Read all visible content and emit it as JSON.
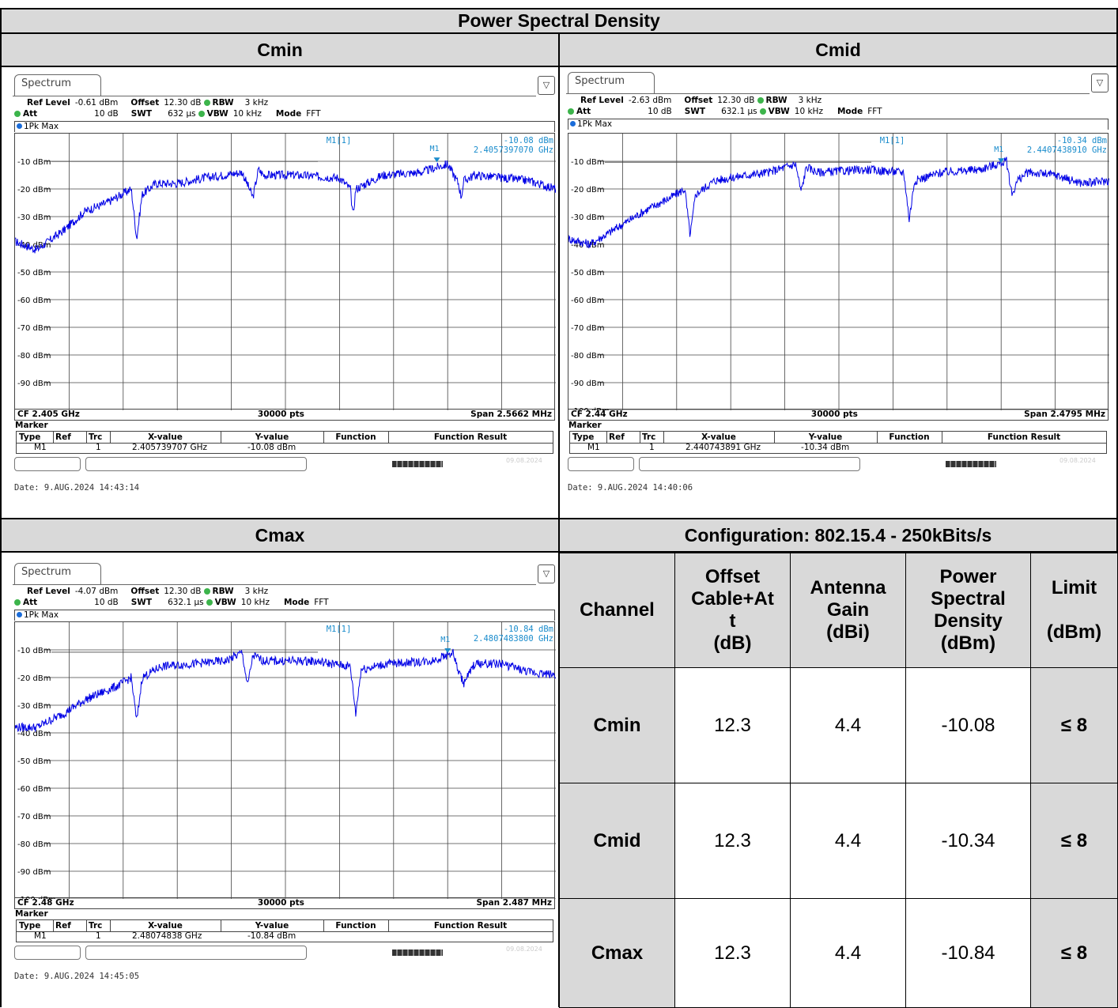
{
  "page_title": "Power Spectral Density",
  "panels": [
    {
      "label": "Cmin",
      "tab": "Spectrum",
      "ref_level": "-0.61 dBm",
      "offset": "12.30 dB",
      "rbw": "3 kHz",
      "att": "10 dB",
      "swt": "632 µs",
      "vbw": "10 kHz",
      "mode": "FFT",
      "trace": "1Pk Max",
      "marker_label": "M1[1]",
      "marker_tag": "M1",
      "marker_y": "-10.08 dBm",
      "marker_freq": "2.4057397070 GHz",
      "cf": "CF 2.405 GHz",
      "pts": "30000 pts",
      "span": "Span 2.5662 MHz",
      "table_xvalue": "2.405739707 GHz",
      "table_yvalue": "-10.08 dBm",
      "table_trc": "1",
      "date": "Date: 9.AUG.2024  14:43:14",
      "status_date": "09.08.2024",
      "ylabels": [
        "-10 dBm",
        "-20 dBm",
        "-30 dBm",
        "-40 dBm",
        "-50 dBm",
        "-60 dBm",
        "-70 dBm",
        "-80 dBm",
        "-90 dBm"
      ]
    },
    {
      "label": "Cmid",
      "tab": "Spectrum",
      "ref_level": "-2.63 dBm",
      "offset": "12.30 dB",
      "rbw": "3 kHz",
      "att": "10 dB",
      "swt": "632.1 µs",
      "vbw": "10 kHz",
      "mode": "FFT",
      "trace": "1Pk Max",
      "marker_label": "M1[1]",
      "marker_tag": "M1",
      "marker_y": "-10.34 dBm",
      "marker_freq": "2.4407438910 GHz",
      "cf": "CF 2.44 GHz",
      "pts": "30000 pts",
      "span": "Span 2.4795 MHz",
      "table_xvalue": "2.440743891 GHz",
      "table_yvalue": "-10.34 dBm",
      "table_trc": "1",
      "date": "Date: 9.AUG.2024  14:40:06",
      "status_date": "09.08.2024",
      "ylabels": [
        "-10 dBm",
        "-20 dBm",
        "-30 dBm",
        "-40 dBm",
        "-50 dBm",
        "-60 dBm",
        "-70 dBm",
        "-80 dBm",
        "-90 dBm",
        "-100 dBm"
      ]
    },
    {
      "label": "Cmax",
      "tab": "Spectrum",
      "ref_level": "-4.07 dBm",
      "offset": "12.30 dB",
      "rbw": "3 kHz",
      "att": "10 dB",
      "swt": "632.1 µs",
      "vbw": "10 kHz",
      "mode": "FFT",
      "trace": "1Pk Max",
      "marker_label": "M1[1]",
      "marker_tag": "M1",
      "marker_y": "-10.84 dBm",
      "marker_freq": "2.4807483800 GHz",
      "cf": "CF 2.48 GHz",
      "pts": "30000 pts",
      "span": "Span 2.487 MHz",
      "table_xvalue": "2.48074838 GHz",
      "table_yvalue": "-10.84 dBm",
      "table_trc": "1",
      "date": "Date: 9.AUG.2024  14:45:05",
      "status_date": "09.08.2024",
      "ylabels": [
        "-10 dBm",
        "-20 dBm",
        "-30 dBm",
        "-40 dBm",
        "-50 dBm",
        "-60 dBm",
        "-70 dBm",
        "-80 dBm",
        "-90 dBm",
        "-100 dBm"
      ]
    }
  ],
  "marker_table": {
    "title": "Marker",
    "headers": [
      "Type",
      "Ref",
      "Trc",
      "X-value",
      "Y-value",
      "Function",
      "Function Result"
    ],
    "type": "M1"
  },
  "setting_labels": {
    "ref_level": "Ref Level",
    "offset": "Offset",
    "rbw": "RBW",
    "att": "Att",
    "swt": "SWT",
    "vbw": "VBW",
    "mode": "Mode"
  },
  "config": {
    "title": "Configuration: 802.15.4 - 250kBits/s",
    "headers": [
      "Channel",
      "Offset\nCable+At\nt\n(dB)",
      "Antenna\nGain\n(dBi)",
      "Power\nSpectral\nDensity\n(dBm)",
      "Limit\n\n(dBm)"
    ],
    "rows": [
      {
        "channel": "Cmin",
        "offset": "12.3",
        "gain": "4.4",
        "psd": "-10.08",
        "limit": "≤ 8"
      },
      {
        "channel": "Cmid",
        "offset": "12.3",
        "gain": "4.4",
        "psd": "-10.34",
        "limit": "≤ 8"
      },
      {
        "channel": "Cmax",
        "offset": "12.3",
        "gain": "4.4",
        "psd": "-10.84",
        "limit": "≤ 8"
      }
    ]
  },
  "chart_data": [
    {
      "type": "line",
      "title": "Cmin",
      "xlabel": "CF 2.405 GHz",
      "ylim": [
        -100,
        0
      ],
      "yticks": [
        -10,
        -20,
        -30,
        -40,
        -50,
        -60,
        -70,
        -80,
        -90
      ],
      "series": [
        {
          "name": "1Pk Max",
          "color": "#0000e6",
          "x": [
            0,
            0.04,
            0.09,
            0.13,
            0.17,
            0.215,
            0.225,
            0.235,
            0.26,
            0.3,
            0.35,
            0.42,
            0.44,
            0.45,
            0.46,
            0.52,
            0.6,
            0.62,
            0.625,
            0.63,
            0.68,
            0.75,
            0.8,
            0.82,
            0.825,
            0.83,
            0.85,
            0.9,
            0.95,
            1.0
          ],
          "y": [
            -39,
            -42,
            -35,
            -28,
            -25,
            -20,
            -38,
            -22,
            -18,
            -18,
            -16,
            -14,
            -23,
            -13,
            -15,
            -15,
            -16,
            -20,
            -30,
            -20,
            -15,
            -14,
            -11,
            -18,
            -23,
            -17,
            -15,
            -16,
            -17,
            -20
          ]
        }
      ],
      "marker": {
        "x": 0.78,
        "y": -10.08
      }
    },
    {
      "type": "line",
      "title": "Cmid",
      "xlabel": "CF 2.44 GHz",
      "ylim": [
        -100,
        0
      ],
      "yticks": [
        -10,
        -20,
        -30,
        -40,
        -50,
        -60,
        -70,
        -80,
        -90,
        -100
      ],
      "series": [
        {
          "name": "1Pk Max",
          "color": "#0000e6",
          "x": [
            0,
            0.04,
            0.09,
            0.14,
            0.19,
            0.215,
            0.225,
            0.235,
            0.27,
            0.33,
            0.37,
            0.42,
            0.43,
            0.44,
            0.46,
            0.55,
            0.62,
            0.63,
            0.64,
            0.69,
            0.76,
            0.81,
            0.82,
            0.83,
            0.85,
            0.9,
            0.95,
            1.0
          ],
          "y": [
            -38,
            -40,
            -34,
            -28,
            -23,
            -20,
            -37,
            -22,
            -17,
            -15,
            -14,
            -11,
            -21,
            -12,
            -14,
            -13,
            -14,
            -31,
            -17,
            -14,
            -13,
            -10,
            -22,
            -17,
            -14,
            -15,
            -18,
            -17
          ]
        }
      ],
      "marker": {
        "x": 0.8,
        "y": -10.34
      }
    },
    {
      "type": "line",
      "title": "Cmax",
      "xlabel": "CF 2.48 GHz",
      "ylim": [
        -100,
        0
      ],
      "yticks": [
        -10,
        -20,
        -30,
        -40,
        -50,
        -60,
        -70,
        -80,
        -90,
        -100
      ],
      "series": [
        {
          "name": "1Pk Max",
          "color": "#0000e6",
          "x": [
            0,
            0.04,
            0.09,
            0.13,
            0.19,
            0.215,
            0.225,
            0.235,
            0.27,
            0.33,
            0.39,
            0.42,
            0.43,
            0.44,
            0.46,
            0.55,
            0.62,
            0.63,
            0.64,
            0.69,
            0.77,
            0.81,
            0.82,
            0.83,
            0.85,
            0.9,
            0.95,
            1.0
          ],
          "y": [
            -38,
            -38,
            -33,
            -28,
            -23,
            -20,
            -36,
            -20,
            -16,
            -15,
            -14,
            -11,
            -23,
            -12,
            -14,
            -14,
            -16,
            -33,
            -17,
            -15,
            -14,
            -11,
            -18,
            -22,
            -15,
            -15,
            -18,
            -19
          ]
        }
      ],
      "marker": {
        "x": 0.8,
        "y": -10.84
      }
    }
  ]
}
